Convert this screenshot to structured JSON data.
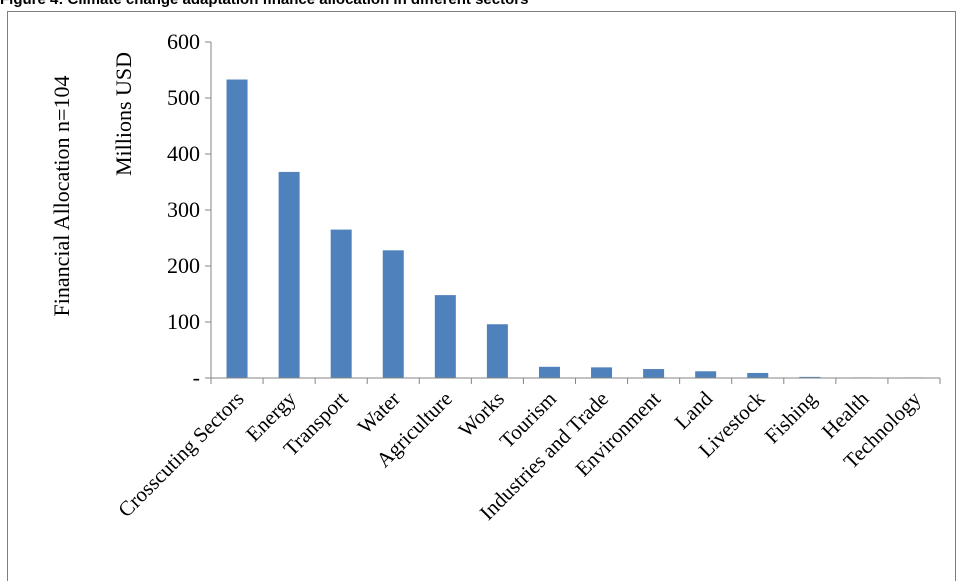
{
  "figure_title": "Figure 4: Climate change adaptation finance allocation in different sectors",
  "chart_data": {
    "type": "bar",
    "title": "",
    "ylabel_line1": "Financial Allocation n=104",
    "ylabel_line2": "Millions USD",
    "xlabel": "",
    "ylim": [
      0,
      600
    ],
    "yticks": [
      0,
      100,
      200,
      300,
      400,
      500,
      600
    ],
    "ytick_labels": [
      "-",
      "100",
      "200",
      "300",
      "400",
      "500",
      "600"
    ],
    "grid": false,
    "legend": "none",
    "bar_color": "#4f81bd",
    "categories": [
      "Crosscuting Sectors",
      "Energy",
      "Transport",
      "Water",
      "Agriculture",
      "Works",
      "Tourism",
      "Industries and Trade",
      "Environment",
      "Land",
      "Livestock",
      "Fishing",
      "Health",
      "Technology"
    ],
    "values": [
      533,
      368,
      265,
      228,
      148,
      96,
      20,
      19,
      16,
      12,
      9,
      2,
      1,
      1
    ]
  }
}
